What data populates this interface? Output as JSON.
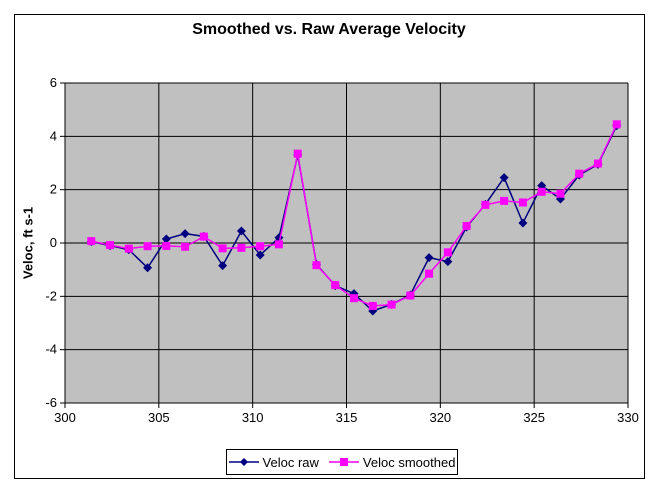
{
  "chart_data": {
    "type": "line",
    "title": "Smoothed vs. Raw Average Velocity",
    "xlabel": "",
    "ylabel": "Veloc, ft s-1",
    "xlim": [
      300,
      330
    ],
    "ylim": [
      -6,
      6
    ],
    "x_ticks": [
      300,
      305,
      310,
      315,
      320,
      325,
      330
    ],
    "y_ticks": [
      6,
      4,
      2,
      0,
      -2,
      -4,
      -6
    ],
    "grid": true,
    "plot_bg_color": "#C0C0C0",
    "gridline_color": "#000000",
    "legend_position": "bottom",
    "x": [
      301.4,
      302.4,
      303.4,
      304.4,
      305.4,
      306.4,
      307.4,
      308.4,
      309.4,
      310.4,
      311.4,
      312.4,
      313.4,
      314.4,
      315.4,
      316.4,
      317.4,
      318.4,
      319.4,
      320.4,
      321.4,
      322.4,
      323.4,
      324.4,
      325.4,
      326.4,
      327.4,
      328.4,
      329.4
    ],
    "series": [
      {
        "name": "Veloc raw",
        "color": "#000080",
        "marker": "diamond",
        "values": [
          0.05,
          -0.1,
          -0.25,
          -0.93,
          0.15,
          0.35,
          0.25,
          -0.85,
          0.45,
          -0.45,
          0.2,
          3.3,
          -0.8,
          -1.6,
          -1.9,
          -2.55,
          -2.3,
          -1.95,
          -0.55,
          -0.7,
          0.6,
          1.45,
          2.45,
          0.75,
          2.15,
          1.65,
          2.55,
          2.95,
          4.4
        ]
      },
      {
        "name": "Veloc smoothed",
        "color": "#FF00FF",
        "marker": "square",
        "values": [
          0.07,
          -0.08,
          -0.21,
          -0.12,
          -0.11,
          -0.14,
          0.24,
          -0.2,
          -0.18,
          -0.12,
          -0.05,
          3.35,
          -0.83,
          -1.58,
          -2.07,
          -2.36,
          -2.31,
          -1.97,
          -1.15,
          -0.35,
          0.64,
          1.43,
          1.58,
          1.52,
          1.92,
          1.85,
          2.6,
          2.98,
          4.45
        ]
      }
    ]
  }
}
